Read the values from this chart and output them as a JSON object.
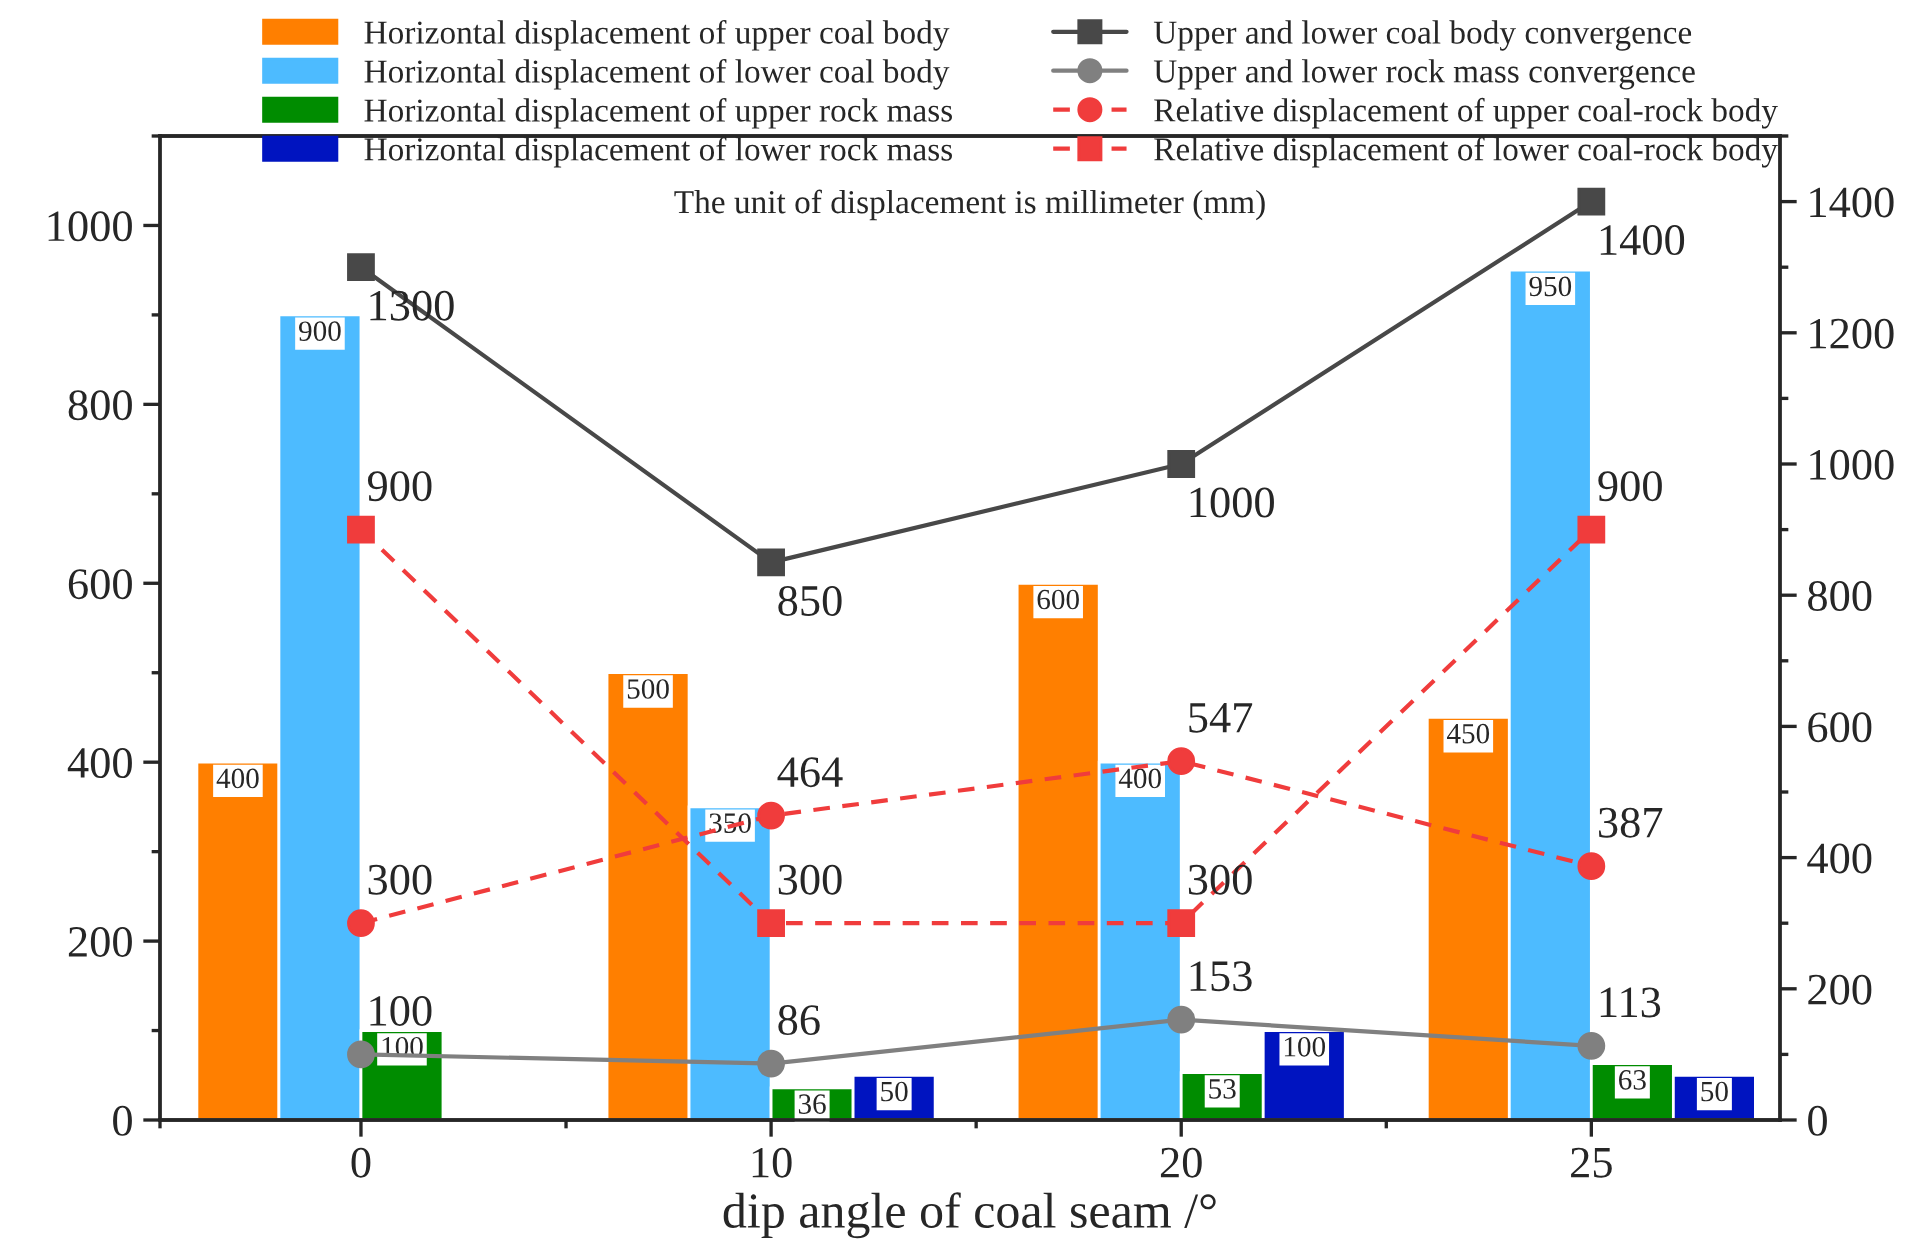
{
  "chart_data": {
    "type": "bar",
    "categories": [
      "0",
      "10",
      "20",
      "25"
    ],
    "xlabel": "dip angle of coal seam /°",
    "annotations": [
      "The unit of displacement is millimeter (mm)"
    ],
    "series": [
      {
        "name": "Horizontal displacement of upper coal body",
        "color": "#ff7f00",
        "values": [
          400,
          500,
          600,
          450
        ]
      },
      {
        "name": "Horizontal displacement of lower coal body",
        "color": "#4dbbff",
        "values": [
          900,
          350,
          400,
          950
        ]
      },
      {
        "name": "Horizontal displacement of upper rock mass",
        "color": "#008c00",
        "values": [
          100,
          36,
          53,
          63
        ]
      },
      {
        "name": "Horizontal displacement of lower rock mass",
        "color": "#0014c0",
        "values": [
          null,
          50,
          100,
          50
        ]
      },
      {
        "name": "Upper and lower coal body convergence",
        "type": "line",
        "axis": "y2",
        "color": "#484848",
        "marker": "square",
        "line_style": "solid",
        "values": [
          1300,
          850,
          1000,
          1400
        ]
      },
      {
        "name": "Upper and lower rock mass convergence",
        "type": "line",
        "axis": "y2",
        "color": "#808080",
        "marker": "circle",
        "line_style": "solid",
        "values": [
          100,
          86,
          153,
          113
        ]
      },
      {
        "name": "Relative displacement of upper coal-rock body",
        "type": "line",
        "axis": "y2",
        "color": "#f03c3c",
        "marker": "circle",
        "line_style": "dashed",
        "values": [
          300,
          464,
          547,
          387
        ]
      },
      {
        "name": "Relative displacement of lower coal-rock body",
        "type": "line",
        "axis": "y2",
        "color": "#f03c3c",
        "marker": "square",
        "line_style": "dashed",
        "values": [
          900,
          300,
          300,
          900
        ]
      }
    ],
    "ylim": [
      0,
      1100
    ],
    "yticks": [
      0,
      200,
      400,
      600,
      800,
      1000
    ],
    "y2lim": [
      0,
      1500
    ],
    "y2ticks": [
      0,
      200,
      400,
      600,
      800,
      1000,
      1200,
      1400
    ],
    "data_labels": true,
    "legend": "top",
    "grid": false
  }
}
